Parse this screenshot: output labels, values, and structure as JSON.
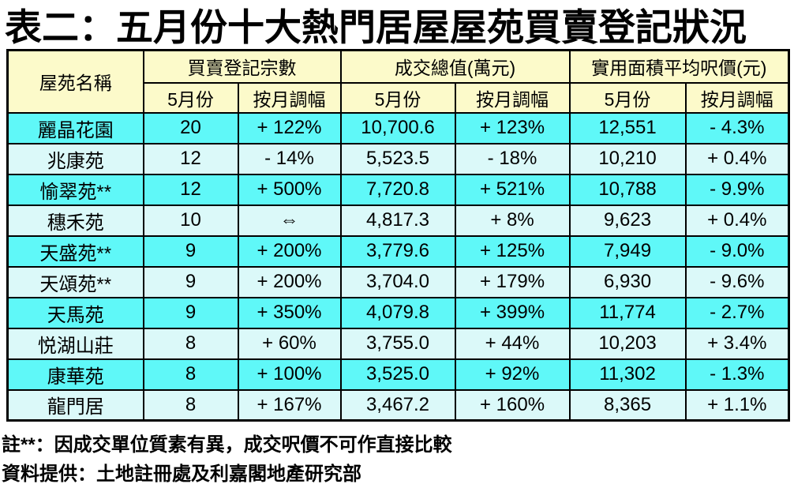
{
  "title": "表二：五月份十大熱門居屋屋苑買賣登記狀況",
  "table": {
    "corner_header": "屋苑名稱",
    "group_headers": [
      "買賣登記宗數",
      "成交總值(萬元)",
      "實用面積平均呎價(元)"
    ],
    "sub_headers": [
      "5月份",
      "按月調幅",
      "5月份",
      "按月調幅",
      "5月份",
      "按月調幅"
    ],
    "rows": [
      {
        "name": "麗晶花園",
        "cells": [
          "20",
          "+ 122%",
          "10,700.6",
          "+ 123%",
          "12,551",
          "- 4.3%"
        ]
      },
      {
        "name": "兆康苑",
        "cells": [
          "12",
          "- 14%",
          "5,523.5",
          "- 18%",
          "10,210",
          "+ 0.4%"
        ]
      },
      {
        "name": "愉翠苑**",
        "cells": [
          "12",
          "+ 500%",
          "7,720.8",
          "+ 521%",
          "10,788",
          "- 9.9%"
        ]
      },
      {
        "name": "穗禾苑",
        "cells": [
          "10",
          "⇔",
          "4,817.3",
          "+ 8%",
          "9,623",
          "+ 0.4%"
        ]
      },
      {
        "name": "天盛苑**",
        "cells": [
          "9",
          "+ 200%",
          "3,779.6",
          "+ 125%",
          "7,949",
          "- 9.0%"
        ]
      },
      {
        "name": "天頌苑**",
        "cells": [
          "9",
          "+ 200%",
          "3,704.0",
          "+ 179%",
          "6,930",
          "- 9.6%"
        ]
      },
      {
        "name": "天馬苑",
        "cells": [
          "9",
          "+ 350%",
          "4,079.8",
          "+ 399%",
          "11,774",
          "- 2.7%"
        ]
      },
      {
        "name": "悦湖山莊",
        "cells": [
          "8",
          "+ 60%",
          "3,755.0",
          "+ 44%",
          "10,203",
          "+ 3.4%"
        ]
      },
      {
        "name": "康華苑",
        "cells": [
          "8",
          "+ 100%",
          "3,525.0",
          "+ 92%",
          "11,302",
          "- 1.3%"
        ]
      },
      {
        "name": "龍門居",
        "cells": [
          "8",
          "+ 167%",
          "3,467.2",
          "+ 160%",
          "8,365",
          "+ 1.1%"
        ]
      }
    ]
  },
  "footnotes": [
    "註**：因成交單位質素有異，成交呎價不可作直接比較",
    "資料提供：土地註冊處及利嘉閣地產研究部"
  ],
  "colors": {
    "header_bg": "#FCFACA",
    "row_bright": "#5FF8F8",
    "row_light": "#DBF9F9",
    "border": "#000000"
  }
}
